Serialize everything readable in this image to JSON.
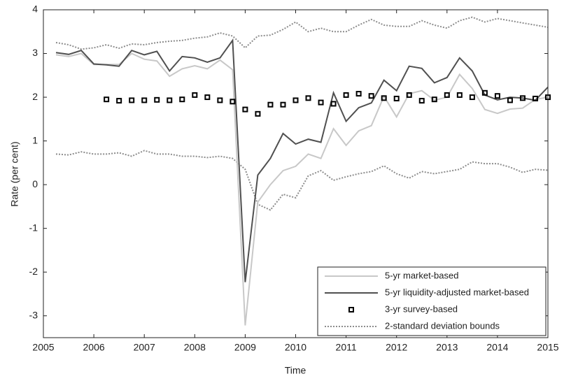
{
  "chart_data": {
    "type": "line",
    "x_label": "Time",
    "y_label": "Rate (per cent)",
    "xlim": [
      2005,
      2015
    ],
    "ylim": [
      -3.5,
      4
    ],
    "xticks": [
      2005,
      2006,
      2007,
      2008,
      2009,
      2010,
      2011,
      2012,
      2013,
      2014,
      2015
    ],
    "yticks": [
      -3,
      -2,
      -1,
      0,
      1,
      2,
      3,
      4
    ],
    "legend": "lower-right",
    "x": [
      2005.25,
      2005.5,
      2005.75,
      2006,
      2006.25,
      2006.5,
      2006.75,
      2007,
      2007.25,
      2007.5,
      2007.75,
      2008,
      2008.25,
      2008.5,
      2008.75,
      2009,
      2009.25,
      2009.5,
      2009.75,
      2010,
      2010.25,
      2010.5,
      2010.75,
      2011,
      2011.25,
      2011.5,
      2011.75,
      2012,
      2012.25,
      2012.5,
      2012.75,
      2013,
      2013.25,
      2013.5,
      2013.75,
      2014,
      2014.25,
      2014.5,
      2014.75,
      2015
    ],
    "series": [
      {
        "name": "5-yr market-based",
        "color": "#c8c8c8",
        "style": "solid",
        "values": [
          2.97,
          2.93,
          3.0,
          2.75,
          2.75,
          2.75,
          3.0,
          2.87,
          2.83,
          2.48,
          2.65,
          2.72,
          2.65,
          2.85,
          2.63,
          -3.22,
          -0.4,
          0.0,
          0.32,
          0.42,
          0.7,
          0.6,
          1.28,
          0.9,
          1.23,
          1.35,
          2.02,
          1.55,
          2.08,
          2.15,
          1.93,
          2.0,
          2.52,
          2.2,
          1.72,
          1.63,
          1.73,
          1.75,
          1.95,
          2.0
        ]
      },
      {
        "name": "5-yr liquidity-adjusted market-based",
        "color": "#505050",
        "style": "solid",
        "values": [
          3.02,
          2.98,
          3.07,
          2.76,
          2.74,
          2.71,
          3.07,
          2.97,
          3.05,
          2.6,
          2.93,
          2.9,
          2.8,
          2.9,
          3.3,
          -2.23,
          0.22,
          0.6,
          1.17,
          0.93,
          1.04,
          0.97,
          2.1,
          1.45,
          1.76,
          1.87,
          2.39,
          2.15,
          2.71,
          2.66,
          2.33,
          2.45,
          2.9,
          2.6,
          2.05,
          1.94,
          2.0,
          1.98,
          1.93,
          2.23
        ]
      },
      {
        "name": "3-yr survey-based",
        "color": "#000000",
        "style": "square",
        "values": [
          null,
          null,
          null,
          null,
          1.95,
          1.92,
          1.93,
          1.93,
          1.94,
          1.93,
          1.95,
          2.05,
          2.0,
          1.93,
          1.9,
          1.72,
          1.62,
          1.83,
          1.83,
          1.93,
          1.98,
          1.88,
          1.85,
          2.05,
          2.08,
          2.03,
          1.98,
          1.97,
          2.05,
          1.92,
          1.95,
          2.05,
          2.05,
          2.0,
          2.1,
          2.03,
          1.93,
          1.98,
          1.97,
          2.0
        ]
      },
      {
        "name": "2-standard deviation bounds",
        "color": "#8c8c8c",
        "style": "dotted",
        "values": [
          3.25,
          3.2,
          3.1,
          3.13,
          3.2,
          3.12,
          3.22,
          3.2,
          3.25,
          3.28,
          3.3,
          3.35,
          3.38,
          3.47,
          3.4,
          3.13,
          3.4,
          3.42,
          3.55,
          3.72,
          3.5,
          3.58,
          3.5,
          3.5,
          3.65,
          3.78,
          3.65,
          3.62,
          3.62,
          3.75,
          3.65,
          3.58,
          3.75,
          3.83,
          3.72,
          3.8,
          3.75,
          3.7,
          3.65,
          3.6
        ],
        "lower": [
          0.7,
          0.68,
          0.75,
          0.7,
          0.7,
          0.73,
          0.65,
          0.78,
          0.7,
          0.7,
          0.65,
          0.65,
          0.62,
          0.65,
          0.6,
          0.35,
          -0.45,
          -0.58,
          -0.22,
          -0.3,
          0.2,
          0.32,
          0.1,
          0.18,
          0.25,
          0.3,
          0.43,
          0.25,
          0.15,
          0.3,
          0.25,
          0.3,
          0.35,
          0.52,
          0.48,
          0.48,
          0.4,
          0.28,
          0.35,
          0.33
        ]
      }
    ]
  }
}
